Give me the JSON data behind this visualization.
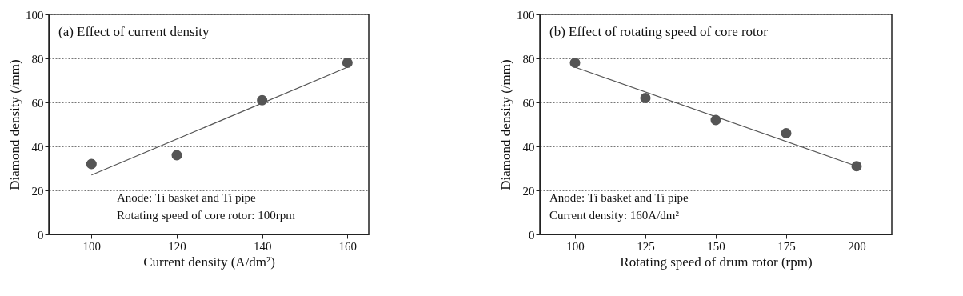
{
  "chart_data": [
    {
      "type": "scatter",
      "title": "(a) Effect of current density",
      "xlabel": "Current density (A/dm²)",
      "ylabel": "Diamond density (/mm)",
      "xlim": [
        90,
        165
      ],
      "xticks": [
        100,
        120,
        140,
        160
      ],
      "ylim": [
        0,
        100
      ],
      "yticks": [
        0,
        20,
        40,
        60,
        80,
        100
      ],
      "grid": "y",
      "annotations": [
        "Anode: Ti basket and Ti pipe",
        "Rotating speed of core rotor: 100rpm"
      ],
      "series": [
        {
          "color": "#555555",
          "marker": "circle",
          "x": [
            100,
            120,
            140,
            160
          ],
          "values": [
            32,
            36,
            61,
            78
          ]
        },
        {
          "type": "line",
          "color": "#555555",
          "x": [
            100,
            160
          ],
          "values": [
            27,
            76
          ]
        }
      ]
    },
    {
      "type": "scatter",
      "title": "(b) Effect of rotating speed of core rotor",
      "xlabel": "Rotating speed of drum rotor (rpm)",
      "ylabel": "Diamond density (/mm)",
      "xlim": [
        87.5,
        212.5
      ],
      "xticks": [
        100,
        125,
        150,
        175,
        200
      ],
      "ylim": [
        0,
        100
      ],
      "yticks": [
        0,
        20,
        40,
        60,
        80,
        100
      ],
      "grid": "y",
      "annotations": [
        "Anode: Ti basket and Ti pipe",
        "Current density: 160A/dm²"
      ],
      "series": [
        {
          "color": "#555555",
          "marker": "circle",
          "x": [
            100,
            125,
            150,
            175,
            200
          ],
          "values": [
            78,
            62,
            52,
            46,
            31
          ]
        },
        {
          "type": "line",
          "color": "#555555",
          "x": [
            100,
            200
          ],
          "values": [
            76,
            31
          ]
        }
      ]
    }
  ]
}
